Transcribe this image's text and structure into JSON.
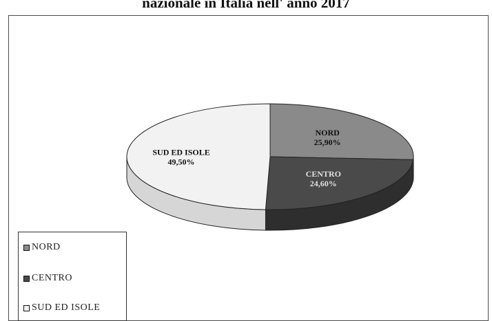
{
  "title": "nazionale in Italia nell' anno 2017",
  "chart_data": {
    "type": "pie",
    "style": "3d",
    "categories": [
      "NORD",
      "CENTRO",
      "SUD ED ISOLE"
    ],
    "values": [
      25.9,
      24.6,
      49.5
    ],
    "value_labels": [
      "25,90%",
      "24,60%",
      "49,50%"
    ],
    "colors": [
      "#8a8a8a",
      "#4a4a4a",
      "#f2f2f2"
    ],
    "side_colors": [
      "#5c5c5c",
      "#2e2e2e",
      "#d6d6d6"
    ],
    "label_colors": [
      "#111111",
      "#e0e0e0",
      "#111111"
    ],
    "legend_position": "bottom-left"
  }
}
